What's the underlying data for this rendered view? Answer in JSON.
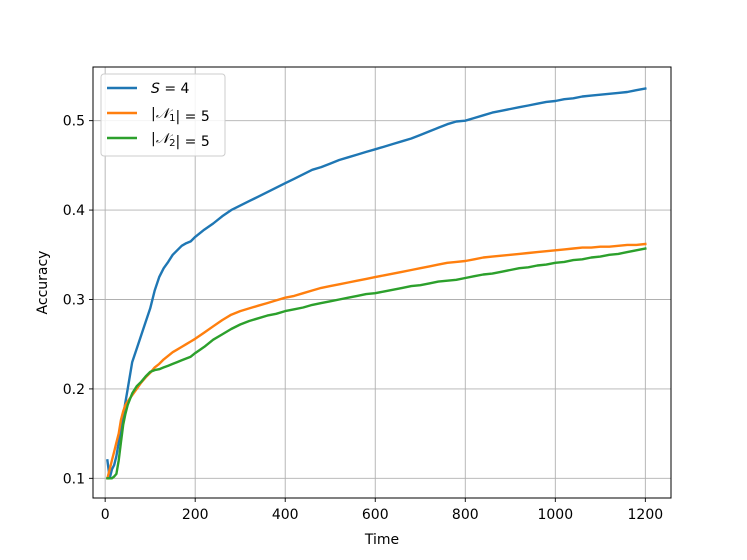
{
  "chart_data": {
    "type": "line",
    "title": "",
    "xlabel": "Time",
    "ylabel": "Accuracy",
    "xlim": [
      -27,
      1257
    ],
    "ylim": [
      0.078,
      0.56
    ],
    "xticks": [
      0,
      200,
      400,
      600,
      800,
      1000,
      1200
    ],
    "yticks": [
      0.1,
      0.2,
      0.3,
      0.4,
      0.5
    ],
    "grid": true,
    "legend_position": "upper-left",
    "series": [
      {
        "name": "S = 4",
        "legend_parts": [
          {
            "t": "S",
            "i": true
          },
          {
            "t": " = 4"
          }
        ],
        "color": "#1f77b4",
        "x": [
          5,
          10,
          15,
          20,
          25,
          30,
          35,
          40,
          45,
          50,
          60,
          70,
          80,
          90,
          100,
          110,
          120,
          130,
          140,
          150,
          160,
          170,
          180,
          190,
          200,
          220,
          240,
          260,
          280,
          300,
          320,
          340,
          360,
          380,
          400,
          420,
          440,
          460,
          480,
          500,
          520,
          540,
          560,
          580,
          600,
          620,
          640,
          660,
          680,
          700,
          720,
          740,
          760,
          780,
          800,
          820,
          840,
          860,
          880,
          900,
          920,
          940,
          960,
          980,
          1000,
          1020,
          1040,
          1060,
          1080,
          1100,
          1120,
          1140,
          1160,
          1180,
          1200
        ],
        "y": [
          0.12,
          0.1,
          0.11,
          0.115,
          0.125,
          0.14,
          0.155,
          0.17,
          0.185,
          0.2,
          0.23,
          0.245,
          0.26,
          0.275,
          0.29,
          0.31,
          0.325,
          0.335,
          0.342,
          0.35,
          0.355,
          0.36,
          0.363,
          0.365,
          0.37,
          0.378,
          0.385,
          0.393,
          0.4,
          0.405,
          0.41,
          0.415,
          0.42,
          0.425,
          0.43,
          0.435,
          0.44,
          0.445,
          0.448,
          0.452,
          0.456,
          0.459,
          0.462,
          0.465,
          0.468,
          0.471,
          0.474,
          0.477,
          0.48,
          0.484,
          0.488,
          0.492,
          0.496,
          0.499,
          0.5,
          0.503,
          0.506,
          0.509,
          0.511,
          0.513,
          0.515,
          0.517,
          0.519,
          0.521,
          0.522,
          0.524,
          0.525,
          0.527,
          0.528,
          0.529,
          0.53,
          0.531,
          0.532,
          0.534,
          0.536
        ]
      },
      {
        "name": "|N1| = 5",
        "legend_parts": [
          {
            "t": "|"
          },
          {
            "t": "𝒩",
            "i": true
          },
          {
            "t": "1",
            "sub": true
          },
          {
            "t": "| = 5"
          }
        ],
        "color": "#ff7f0e",
        "x": [
          5,
          10,
          15,
          20,
          25,
          30,
          35,
          40,
          45,
          50,
          60,
          70,
          80,
          90,
          100,
          110,
          120,
          130,
          140,
          150,
          160,
          170,
          180,
          190,
          200,
          220,
          240,
          260,
          280,
          300,
          320,
          340,
          360,
          380,
          400,
          420,
          440,
          460,
          480,
          500,
          520,
          540,
          560,
          580,
          600,
          620,
          640,
          660,
          680,
          700,
          720,
          740,
          760,
          780,
          800,
          820,
          840,
          860,
          880,
          900,
          920,
          940,
          960,
          980,
          1000,
          1020,
          1040,
          1060,
          1080,
          1100,
          1120,
          1140,
          1160,
          1180,
          1200
        ],
        "y": [
          0.1,
          0.11,
          0.12,
          0.13,
          0.14,
          0.15,
          0.165,
          0.175,
          0.182,
          0.186,
          0.193,
          0.2,
          0.207,
          0.213,
          0.218,
          0.224,
          0.228,
          0.233,
          0.237,
          0.241,
          0.244,
          0.247,
          0.25,
          0.253,
          0.256,
          0.263,
          0.27,
          0.277,
          0.283,
          0.287,
          0.29,
          0.293,
          0.296,
          0.299,
          0.302,
          0.304,
          0.307,
          0.31,
          0.313,
          0.315,
          0.317,
          0.319,
          0.321,
          0.323,
          0.325,
          0.327,
          0.329,
          0.331,
          0.333,
          0.335,
          0.337,
          0.339,
          0.341,
          0.342,
          0.343,
          0.345,
          0.347,
          0.348,
          0.349,
          0.35,
          0.351,
          0.352,
          0.353,
          0.354,
          0.355,
          0.356,
          0.357,
          0.358,
          0.358,
          0.359,
          0.359,
          0.36,
          0.361,
          0.361,
          0.362
        ]
      },
      {
        "name": "|N2| = 5",
        "legend_parts": [
          {
            "t": "|"
          },
          {
            "t": "𝒩",
            "i": true
          },
          {
            "t": "2",
            "sub": true
          },
          {
            "t": "| = 5"
          }
        ],
        "color": "#2ca02c",
        "x": [
          5,
          10,
          15,
          20,
          25,
          30,
          35,
          40,
          45,
          50,
          60,
          70,
          80,
          90,
          100,
          110,
          120,
          130,
          140,
          150,
          160,
          170,
          180,
          190,
          200,
          220,
          240,
          260,
          280,
          300,
          320,
          340,
          360,
          380,
          400,
          420,
          440,
          460,
          480,
          500,
          520,
          540,
          560,
          580,
          600,
          620,
          640,
          660,
          680,
          700,
          720,
          740,
          760,
          780,
          800,
          820,
          840,
          860,
          880,
          900,
          920,
          940,
          960,
          980,
          1000,
          1020,
          1040,
          1060,
          1080,
          1100,
          1120,
          1140,
          1160,
          1180,
          1200
        ],
        "y": [
          0.1,
          0.1,
          0.1,
          0.102,
          0.105,
          0.12,
          0.14,
          0.16,
          0.172,
          0.182,
          0.195,
          0.203,
          0.208,
          0.214,
          0.219,
          0.221,
          0.222,
          0.224,
          0.226,
          0.228,
          0.23,
          0.232,
          0.234,
          0.236,
          0.24,
          0.247,
          0.255,
          0.261,
          0.267,
          0.272,
          0.276,
          0.279,
          0.282,
          0.284,
          0.287,
          0.289,
          0.291,
          0.294,
          0.296,
          0.298,
          0.3,
          0.302,
          0.304,
          0.306,
          0.307,
          0.309,
          0.311,
          0.313,
          0.315,
          0.316,
          0.318,
          0.32,
          0.321,
          0.322,
          0.324,
          0.326,
          0.328,
          0.329,
          0.331,
          0.333,
          0.335,
          0.336,
          0.338,
          0.339,
          0.341,
          0.342,
          0.344,
          0.345,
          0.347,
          0.348,
          0.35,
          0.351,
          0.353,
          0.355,
          0.357
        ]
      }
    ]
  }
}
